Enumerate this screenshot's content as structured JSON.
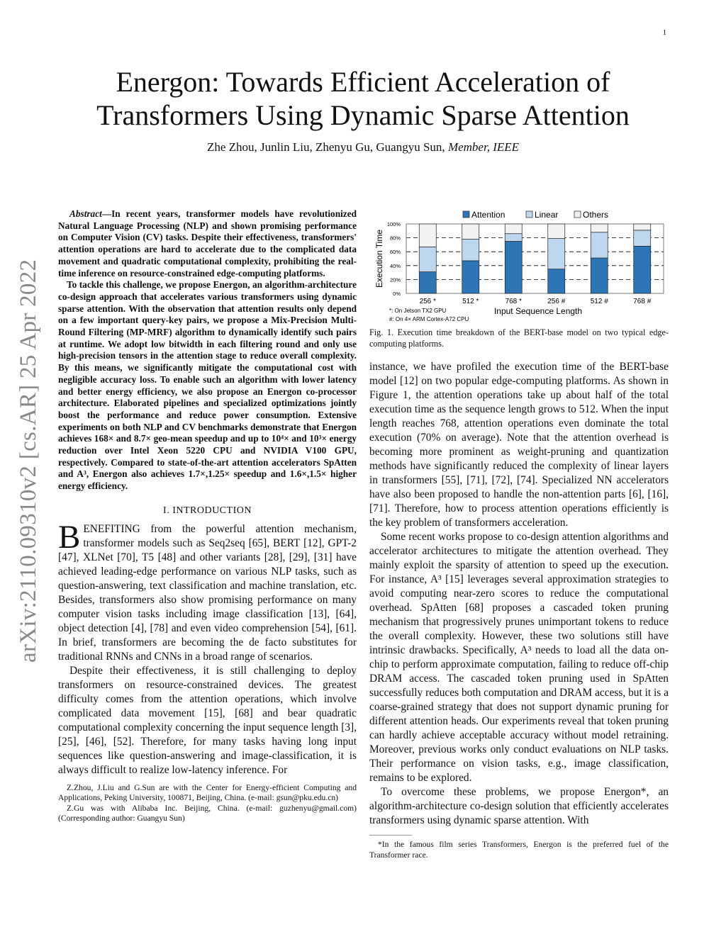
{
  "page_number": "1",
  "title": "Energon: Towards Efficient Acceleration of Transformers Using Dynamic Sparse Attention",
  "title_line1": "Energon: Towards Efficient Acceleration of",
  "title_line2": "Transformers Using Dynamic Sparse Attention",
  "authors": "Zhe Zhou, Junlin Liu, Zhenyu Gu, Guangyu Sun,",
  "authors_membership": "Member, IEEE",
  "arxiv_stamp": "arXiv:2110.09310v2  [cs.AR]  25 Apr 2022",
  "abstract": {
    "label": "Abstract",
    "p1": "—In recent years, transformer models have revolutionized Natural Language Processing (NLP) and shown promising performance on Computer Vision (CV) tasks. Despite their effectiveness, transformers' attention operations are hard to accelerate due to the complicated data movement and quadratic computational complexity, prohibiting the real-time inference on resource-constrained edge-computing platforms.",
    "p2": "To tackle this challenge, we propose Energon, an algorithm-architecture co-design approach that accelerates various transformers using dynamic sparse attention. With the observation that attention results only depend on a few important query-key pairs, we propose a Mix-Precision Multi-Round Filtering (MP-MRF) algorithm to dynamically identify such pairs at runtime. We adopt low bitwidth in each filtering round and only use high-precision tensors in the attention stage to reduce overall complexity. By this means, we significantly mitigate the computational cost with negligible accuracy loss. To enable such an algorithm with lower latency and better energy efficiency, we also propose an Energon co-processor architecture. Elaborated pipelines and specialized optimizations jointly boost the performance and reduce power consumption. Extensive experiments on both NLP and CV benchmarks demonstrate that Energon achieves 168× and 8.7× geo-mean speedup and up to 10⁴× and 10³× energy reduction over Intel Xeon 5220 CPU and NVIDIA V100 GPU, respectively. Compared to state-of-the-art attention accelerators SpAtten and A³, Energon also achieves 1.7×,1.25× speedup and 1.6×,1.5× higher energy efficiency."
  },
  "section_heading": "I. INTRODUCTION",
  "intro": {
    "dropcap": "B",
    "p1": "ENEFITING from the powerful attention mechanism, transformer models such as Seq2seq [65], BERT [12], GPT-2 [47], XLNet [70], T5 [48] and other variants [28], [29], [31] have achieved leading-edge performance on various NLP tasks, such as question-answering, text classification and machine translation, etc. Besides, transformers also show promising performance on many computer vision tasks including image classification [13], [64], object detection [4], [78] and even video comprehension [54], [61]. In brief, transformers are becoming the de facto substitutes for traditional RNNs and CNNs in a broad range of scenarios.",
    "p2": "Despite their effectiveness, it is still challenging to deploy transformers on resource-constrained devices. The greatest difficulty comes from the attention operations, which involve complicated data movement [15], [68] and bear quadratic computational complexity concerning the input sequence length [3], [25], [46], [52]. Therefore, for many tasks having long input sequences like question-answering and image-classification, it is always difficult to realize low-latency inference. For",
    "p3": "instance, we have profiled the execution time of the BERT-base model [12] on two popular edge-computing platforms. As shown in Figure 1, the attention operations take up about half of the total execution time as the sequence length grows to 512. When the input length reaches 768, attention operations even dominate the total execution (70% on average). Note that the attention overhead is becoming more prominent as weight-pruning and quantization methods have significantly reduced the complexity of linear layers in transformers [55], [71], [72], [74]. Specialized NN accelerators have also been proposed to handle the non-attention parts [6], [16], [71]. Therefore, how to process attention operations efficiently is the key problem of transformers acceleration.",
    "p4": "Some recent works propose to co-design attention algorithms and accelerator architectures to mitigate the attention overhead. They mainly exploit the sparsity of attention to speed up the execution. For instance, A³ [15] leverages several approximation strategies to avoid computing near-zero scores to reduce the computational overhead. SpAtten [68] proposes a cascaded token pruning mechanism that progressively prunes unimportant tokens to reduce the overall complexity. However, these two solutions still have intrinsic drawbacks. Specifically, A³ needs to load all the data on-chip to perform approximate computation, failing to reduce off-chip DRAM access. The cascaded token pruning used in SpAtten successfully reduces both computation and DRAM access, but it is a coarse-grained strategy that does not support dynamic pruning for different attention heads. Our experiments reveal that token pruning can hardly achieve acceptable accuracy without model retraining. Moreover, previous works only conduct evaluations on NLP tasks. Their performance on vision tasks, e.g., image classification, remains to be explored.",
    "p5": "To overcome these problems, we propose Energon*, an algorithm-architecture co-design solution that efficiently accelerates transformers using dynamic sparse attention. With"
  },
  "footnotes_left": [
    "Z.Zhou, J.Liu and G.Sun are with the Center for Energy-efficient Computing and Applications, Peking University, 100871, Beijing, China. (e-mail: gsun@pku.edu.cn)",
    "Z.Gu was with Alibaba Inc. Beijing, China. (e-mail: guzhenyu@gmail.com) (Corresponding author: Guangyu Sun)"
  ],
  "footnote_right": "*In the famous film series Transformers, Energon is the preferred fuel of the Transformer race.",
  "figure_caption": "Fig. 1.  Execution time breakdown of the BERT-base model on two typical edge-computing platforms.",
  "chart_data": {
    "type": "stacked-bar",
    "categories": [
      "256 *",
      "512 *",
      "768 *",
      "256 #",
      "512 #",
      "768 #"
    ],
    "series": [
      {
        "name": "Attention",
        "values": [
          31,
          47,
          75,
          35,
          51,
          68
        ],
        "color": "#2e75b6"
      },
      {
        "name": "Linear",
        "values": [
          36,
          31,
          11,
          44,
          37,
          23
        ],
        "color": "#bdd7ee"
      },
      {
        "name": "Others",
        "values": [
          33,
          22,
          14,
          21,
          12,
          9
        ],
        "color": "#f2f2f2"
      }
    ],
    "xlabel": "Input Sequence Length",
    "ylabel": "Execution Time",
    "yticks": [
      "0%",
      "20%",
      "40%",
      "60%",
      "80%",
      "100%"
    ],
    "ylim": [
      0,
      100
    ],
    "grid": "dashed horizontal",
    "legend": "top",
    "notes": [
      "*: On Jetson TX2 GPU",
      "#: On 4× ARM Cortex-A72 CPU"
    ]
  }
}
